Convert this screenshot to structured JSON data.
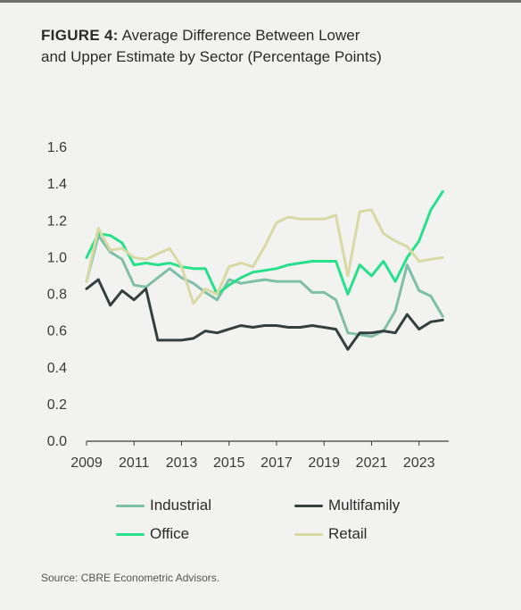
{
  "figure": {
    "label": "FIGURE 4:",
    "title_line1": "Average Difference Between Lower",
    "title_line2": "and Upper Estimate by Sector (Percentage Points)"
  },
  "source": "Source: CBRE Econometric Advisors.",
  "chart_data": {
    "type": "line",
    "title": "Average Difference Between Lower and Upper Estimate by Sector (Percentage Points)",
    "xlabel": "",
    "ylabel": "",
    "xlim": [
      2009,
      2024.25
    ],
    "ylim": [
      0,
      1.6
    ],
    "x_ticks": [
      2009,
      2011,
      2013,
      2015,
      2017,
      2019,
      2021,
      2023
    ],
    "x_tick_labels": [
      "2009",
      "2011",
      "2013",
      "2015",
      "2017",
      "2019",
      "2021",
      "2023"
    ],
    "y_ticks": [
      0,
      0.2,
      0.4,
      0.6,
      0.8,
      1.0,
      1.2,
      1.4,
      1.6
    ],
    "y_tick_labels": [
      "0.0",
      "0.2",
      "0.4",
      "0.6",
      "0.8",
      "1.0",
      "1.2",
      "1.4",
      "1.6"
    ],
    "grid": false,
    "legend_position": "bottom",
    "x": [
      2009.0,
      2009.5,
      2010.0,
      2010.5,
      2011.0,
      2011.5,
      2012.0,
      2012.5,
      2013.0,
      2013.5,
      2014.0,
      2014.5,
      2015.0,
      2015.5,
      2016.0,
      2016.5,
      2017.0,
      2017.5,
      2018.0,
      2018.5,
      2019.0,
      2019.5,
      2020.0,
      2020.5,
      2021.0,
      2021.5,
      2022.0,
      2022.5,
      2023.0,
      2023.5,
      2024.0
    ],
    "series": [
      {
        "name": "Industrial",
        "color": "#7dbfa7",
        "values": [
          0.87,
          1.12,
          1.03,
          0.99,
          0.85,
          0.84,
          0.89,
          0.94,
          0.89,
          0.86,
          0.81,
          0.77,
          0.88,
          0.86,
          0.87,
          0.88,
          0.87,
          0.87,
          0.87,
          0.81,
          0.81,
          0.77,
          0.59,
          0.58,
          0.57,
          0.6,
          0.71,
          0.96,
          0.82,
          0.79,
          0.68
        ]
      },
      {
        "name": "Multifamily",
        "color": "#34403f",
        "values": [
          0.83,
          0.88,
          0.74,
          0.82,
          0.77,
          0.83,
          0.55,
          0.55,
          0.55,
          0.56,
          0.6,
          0.59,
          0.61,
          0.63,
          0.62,
          0.63,
          0.63,
          0.62,
          0.62,
          0.63,
          0.62,
          0.61,
          0.5,
          0.59,
          0.59,
          0.6,
          0.59,
          0.69,
          0.61,
          0.65,
          0.66
        ]
      },
      {
        "name": "Office",
        "color": "#27e08a",
        "values": [
          1.0,
          1.13,
          1.12,
          1.08,
          0.96,
          0.97,
          0.96,
          0.97,
          0.95,
          0.94,
          0.94,
          0.8,
          0.85,
          0.89,
          0.92,
          0.93,
          0.94,
          0.96,
          0.97,
          0.98,
          0.98,
          0.98,
          0.8,
          0.96,
          0.9,
          0.98,
          0.87,
          1.0,
          1.09,
          1.26,
          1.36
        ]
      },
      {
        "name": "Retail",
        "color": "#d9d9a3",
        "values": [
          0.87,
          1.16,
          1.04,
          1.05,
          1.0,
          0.99,
          1.02,
          1.05,
          0.95,
          0.75,
          0.83,
          0.8,
          0.95,
          0.97,
          0.95,
          1.06,
          1.19,
          1.22,
          1.21,
          1.21,
          1.21,
          1.23,
          0.9,
          1.25,
          1.26,
          1.13,
          1.09,
          1.06,
          0.98,
          0.99,
          1.0
        ]
      }
    ]
  }
}
